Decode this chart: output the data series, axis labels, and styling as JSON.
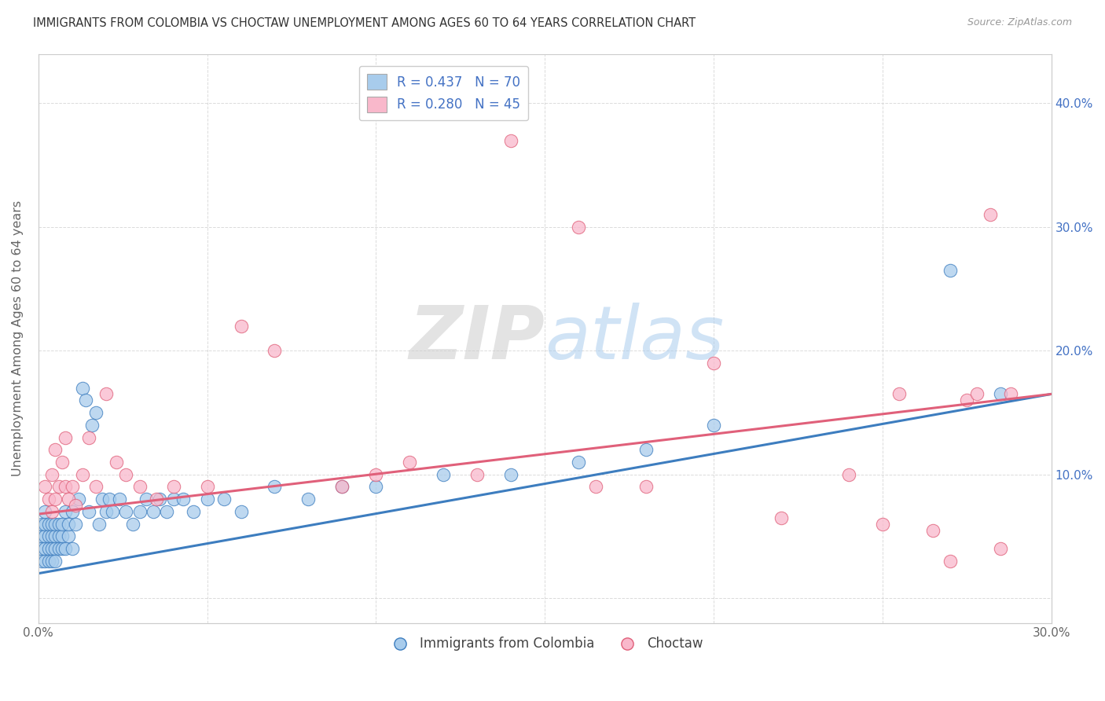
{
  "title": "IMMIGRANTS FROM COLOMBIA VS CHOCTAW UNEMPLOYMENT AMONG AGES 60 TO 64 YEARS CORRELATION CHART",
  "source": "Source: ZipAtlas.com",
  "ylabel": "Unemployment Among Ages 60 to 64 years",
  "xlim": [
    0.0,
    0.3
  ],
  "ylim": [
    -0.02,
    0.44
  ],
  "legend1_label": "R = 0.437   N = 70",
  "legend2_label": "R = 0.280   N = 45",
  "color_blue": "#a8ccec",
  "color_pink": "#f9b8cb",
  "color_blue_line": "#3d7dbf",
  "color_pink_line": "#e0607a",
  "legend_bottom1": "Immigrants from Colombia",
  "legend_bottom2": "Choctaw",
  "grid_color": "#cccccc",
  "background_color": "#ffffff",
  "blue_line_x": [
    0.0,
    0.3
  ],
  "blue_line_y": [
    0.02,
    0.165
  ],
  "pink_line_x": [
    0.0,
    0.3
  ],
  "pink_line_y": [
    0.068,
    0.165
  ],
  "blue_scatter_x": [
    0.001,
    0.001,
    0.001,
    0.001,
    0.002,
    0.002,
    0.002,
    0.002,
    0.002,
    0.003,
    0.003,
    0.003,
    0.003,
    0.004,
    0.004,
    0.004,
    0.004,
    0.005,
    0.005,
    0.005,
    0.005,
    0.006,
    0.006,
    0.006,
    0.007,
    0.007,
    0.007,
    0.008,
    0.008,
    0.009,
    0.009,
    0.01,
    0.01,
    0.011,
    0.012,
    0.013,
    0.014,
    0.015,
    0.016,
    0.017,
    0.018,
    0.019,
    0.02,
    0.021,
    0.022,
    0.024,
    0.026,
    0.028,
    0.03,
    0.032,
    0.034,
    0.036,
    0.038,
    0.04,
    0.043,
    0.046,
    0.05,
    0.055,
    0.06,
    0.07,
    0.08,
    0.09,
    0.1,
    0.12,
    0.14,
    0.16,
    0.18,
    0.2,
    0.27,
    0.285
  ],
  "blue_scatter_y": [
    0.04,
    0.03,
    0.05,
    0.06,
    0.04,
    0.05,
    0.03,
    0.06,
    0.07,
    0.04,
    0.03,
    0.05,
    0.06,
    0.04,
    0.05,
    0.03,
    0.06,
    0.04,
    0.05,
    0.06,
    0.03,
    0.05,
    0.04,
    0.06,
    0.04,
    0.05,
    0.06,
    0.04,
    0.07,
    0.05,
    0.06,
    0.04,
    0.07,
    0.06,
    0.08,
    0.17,
    0.16,
    0.07,
    0.14,
    0.15,
    0.06,
    0.08,
    0.07,
    0.08,
    0.07,
    0.08,
    0.07,
    0.06,
    0.07,
    0.08,
    0.07,
    0.08,
    0.07,
    0.08,
    0.08,
    0.07,
    0.08,
    0.08,
    0.07,
    0.09,
    0.08,
    0.09,
    0.09,
    0.1,
    0.1,
    0.11,
    0.12,
    0.14,
    0.265,
    0.165
  ],
  "pink_scatter_x": [
    0.002,
    0.003,
    0.004,
    0.004,
    0.005,
    0.005,
    0.006,
    0.007,
    0.008,
    0.008,
    0.009,
    0.01,
    0.011,
    0.013,
    0.015,
    0.017,
    0.02,
    0.023,
    0.026,
    0.03,
    0.035,
    0.04,
    0.05,
    0.06,
    0.07,
    0.09,
    0.1,
    0.11,
    0.13,
    0.14,
    0.16,
    0.165,
    0.18,
    0.2,
    0.22,
    0.24,
    0.25,
    0.255,
    0.265,
    0.27,
    0.275,
    0.278,
    0.282,
    0.285,
    0.288
  ],
  "pink_scatter_y": [
    0.09,
    0.08,
    0.07,
    0.1,
    0.08,
    0.12,
    0.09,
    0.11,
    0.09,
    0.13,
    0.08,
    0.09,
    0.075,
    0.1,
    0.13,
    0.09,
    0.165,
    0.11,
    0.1,
    0.09,
    0.08,
    0.09,
    0.09,
    0.22,
    0.2,
    0.09,
    0.1,
    0.11,
    0.1,
    0.37,
    0.3,
    0.09,
    0.09,
    0.19,
    0.065,
    0.1,
    0.06,
    0.165,
    0.055,
    0.03,
    0.16,
    0.165,
    0.31,
    0.04,
    0.165
  ]
}
